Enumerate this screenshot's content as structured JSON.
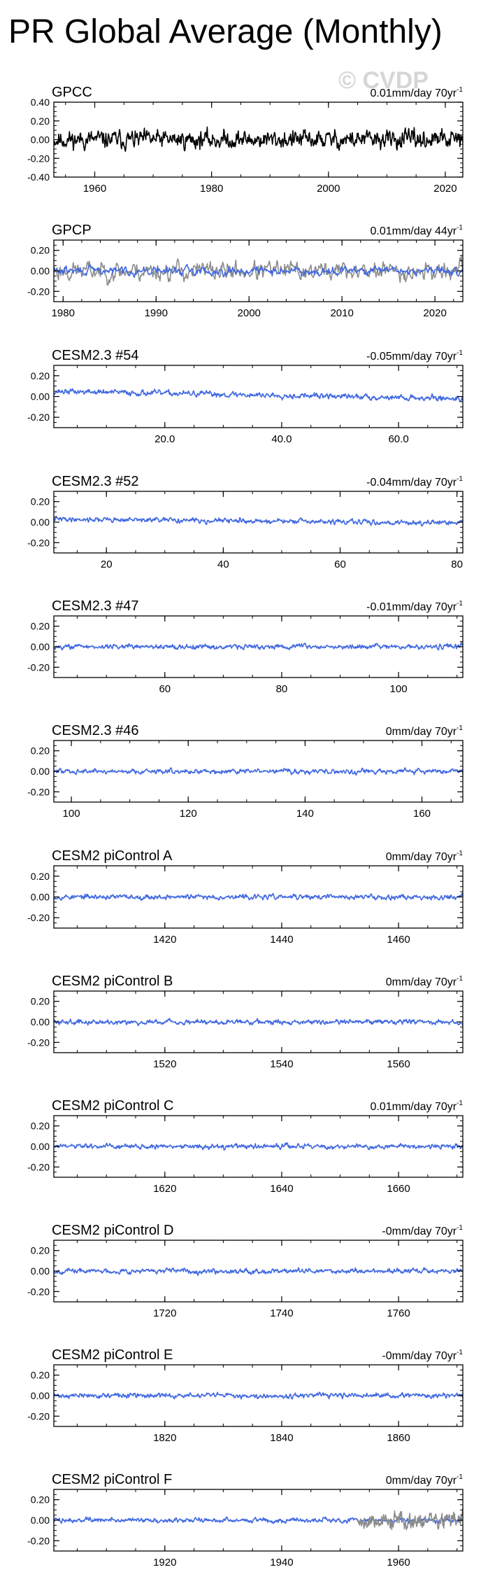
{
  "page": {
    "title": "PR Global Average (Monthly)",
    "watermark": "© CVDP"
  },
  "colors": {
    "observation": "#000000",
    "obs_overlay": "#8c8c8c",
    "model": "#4169e1"
  },
  "chart_data": [
    {
      "type": "line",
      "title": "GPCC",
      "trend": "0.01mm/day 70yr",
      "trend_sup": "-1",
      "xlim": [
        1953,
        2023
      ],
      "ylim": [
        -0.4,
        0.4
      ],
      "xticks": [
        1960,
        1980,
        2000,
        2020
      ],
      "xtick_labels": [
        "1960",
        "1980",
        "2000",
        "2020"
      ],
      "yticks": [
        -0.4,
        -0.2,
        0,
        0.2,
        0.4
      ],
      "ytick_labels": [
        "-0.40",
        "-0.20",
        "0.00",
        "0.20",
        "0.40"
      ],
      "series": [
        {
          "color": "#000000",
          "x_start": 1953,
          "x_end": 2023,
          "amplitude": 0.09,
          "seed": 11
        }
      ]
    },
    {
      "type": "line",
      "title": "GPCP",
      "trend": "0.01mm/day 44yr",
      "trend_sup": "-1",
      "xlim": [
        1979,
        2023
      ],
      "ylim": [
        -0.3,
        0.3
      ],
      "xticks": [
        1980,
        1990,
        2000,
        2010,
        2020
      ],
      "xtick_labels": [
        "1980",
        "1990",
        "2000",
        "2010",
        "2020"
      ],
      "yticks": [
        -0.2,
        0,
        0.2
      ],
      "ytick_labels": [
        "-0.20",
        "0.00",
        "0.20"
      ],
      "series": [
        {
          "color": "#8c8c8c",
          "x_start": 1979,
          "x_end": 2023,
          "amplitude": 0.09,
          "seed": 23
        },
        {
          "color": "#4169e1",
          "x_start": 1979,
          "x_end": 2023,
          "amplitude": 0.04,
          "seed": 29
        }
      ]
    },
    {
      "type": "line",
      "title": "CESM2.3 #54",
      "trend": "-0.05mm/day 70yr",
      "trend_sup": "-1",
      "xlim": [
        1,
        71
      ],
      "ylim": [
        -0.3,
        0.3
      ],
      "xticks": [
        20,
        40,
        60
      ],
      "xtick_labels": [
        "20.0",
        "40.0",
        "60.0"
      ],
      "yticks": [
        -0.2,
        0,
        0.2
      ],
      "ytick_labels": [
        "-0.20",
        "0.00",
        "0.20"
      ],
      "series": [
        {
          "color": "#4169e1",
          "x_start": 1,
          "x_end": 71,
          "amplitude": 0.025,
          "trend_start": 0.05,
          "trend_end": -0.02,
          "seed": 37
        }
      ]
    },
    {
      "type": "line",
      "title": "CESM2.3 #52",
      "trend": "-0.04mm/day 70yr",
      "trend_sup": "-1",
      "xlim": [
        11,
        81
      ],
      "ylim": [
        -0.3,
        0.3
      ],
      "xticks": [
        20,
        40,
        60,
        80
      ],
      "xtick_labels": [
        "20",
        "40",
        "60",
        "80"
      ],
      "yticks": [
        -0.2,
        0,
        0.2
      ],
      "ytick_labels": [
        "-0.20",
        "0.00",
        "0.20"
      ],
      "series": [
        {
          "color": "#4169e1",
          "x_start": 11,
          "x_end": 81,
          "amplitude": 0.022,
          "trend_start": 0.03,
          "trend_end": -0.01,
          "seed": 41
        }
      ]
    },
    {
      "type": "line",
      "title": "CESM2.3 #47",
      "trend": "-0.01mm/day 70yr",
      "trend_sup": "-1",
      "xlim": [
        41,
        111
      ],
      "ylim": [
        -0.3,
        0.3
      ],
      "xticks": [
        60,
        80,
        100
      ],
      "xtick_labels": [
        "60",
        "80",
        "100"
      ],
      "yticks": [
        -0.2,
        0,
        0.2
      ],
      "ytick_labels": [
        "-0.20",
        "0.00",
        "0.20"
      ],
      "series": [
        {
          "color": "#4169e1",
          "x_start": 41,
          "x_end": 111,
          "amplitude": 0.022,
          "seed": 43
        }
      ]
    },
    {
      "type": "line",
      "title": "CESM2.3 #46",
      "trend": "0mm/day 70yr",
      "trend_sup": "-1",
      "xlim": [
        97,
        167
      ],
      "ylim": [
        -0.3,
        0.3
      ],
      "xticks": [
        100,
        120,
        140,
        160
      ],
      "xtick_labels": [
        "100",
        "120",
        "140",
        "160"
      ],
      "yticks": [
        -0.2,
        0,
        0.2
      ],
      "ytick_labels": [
        "-0.20",
        "0.00",
        "0.20"
      ],
      "series": [
        {
          "color": "#4169e1",
          "x_start": 97,
          "x_end": 167,
          "amplitude": 0.022,
          "seed": 47
        }
      ]
    },
    {
      "type": "line",
      "title": "CESM2 piControl A",
      "trend": "0mm/day 70yr",
      "trend_sup": "-1",
      "xlim": [
        1401,
        1471
      ],
      "ylim": [
        -0.3,
        0.3
      ],
      "xticks": [
        1420,
        1440,
        1460
      ],
      "xtick_labels": [
        "1420",
        "1440",
        "1460"
      ],
      "yticks": [
        -0.2,
        0,
        0.2
      ],
      "ytick_labels": [
        "-0.20",
        "0.00",
        "0.20"
      ],
      "series": [
        {
          "color": "#4169e1",
          "x_start": 1401,
          "x_end": 1471,
          "amplitude": 0.022,
          "seed": 53
        }
      ]
    },
    {
      "type": "line",
      "title": "CESM2 piControl B",
      "trend": "0mm/day 70yr",
      "trend_sup": "-1",
      "xlim": [
        1501,
        1571
      ],
      "ylim": [
        -0.3,
        0.3
      ],
      "xticks": [
        1520,
        1540,
        1560
      ],
      "xtick_labels": [
        "1520",
        "1540",
        "1560"
      ],
      "yticks": [
        -0.2,
        0,
        0.2
      ],
      "ytick_labels": [
        "-0.20",
        "0.00",
        "0.20"
      ],
      "series": [
        {
          "color": "#4169e1",
          "x_start": 1501,
          "x_end": 1571,
          "amplitude": 0.022,
          "seed": 59
        }
      ]
    },
    {
      "type": "line",
      "title": "CESM2 piControl C",
      "trend": "0.01mm/day 70yr",
      "trend_sup": "-1",
      "xlim": [
        1601,
        1671
      ],
      "ylim": [
        -0.3,
        0.3
      ],
      "xticks": [
        1620,
        1640,
        1660
      ],
      "xtick_labels": [
        "1620",
        "1640",
        "1660"
      ],
      "yticks": [
        -0.2,
        0,
        0.2
      ],
      "ytick_labels": [
        "-0.20",
        "0.00",
        "0.20"
      ],
      "series": [
        {
          "color": "#4169e1",
          "x_start": 1601,
          "x_end": 1671,
          "amplitude": 0.022,
          "seed": 61
        }
      ]
    },
    {
      "type": "line",
      "title": "CESM2 piControl D",
      "trend": "-0mm/day 70yr",
      "trend_sup": "-1",
      "xlim": [
        1701,
        1771
      ],
      "ylim": [
        -0.3,
        0.3
      ],
      "xticks": [
        1720,
        1740,
        1760
      ],
      "xtick_labels": [
        "1720",
        "1740",
        "1760"
      ],
      "yticks": [
        -0.2,
        0,
        0.2
      ],
      "ytick_labels": [
        "-0.20",
        "0.00",
        "0.20"
      ],
      "series": [
        {
          "color": "#4169e1",
          "x_start": 1701,
          "x_end": 1771,
          "amplitude": 0.022,
          "seed": 67
        }
      ]
    },
    {
      "type": "line",
      "title": "CESM2 piControl E",
      "trend": "-0mm/day 70yr",
      "trend_sup": "-1",
      "xlim": [
        1801,
        1871
      ],
      "ylim": [
        -0.3,
        0.3
      ],
      "xticks": [
        1820,
        1840,
        1860
      ],
      "xtick_labels": [
        "1820",
        "1840",
        "1860"
      ],
      "yticks": [
        -0.2,
        0,
        0.2
      ],
      "ytick_labels": [
        "-0.20",
        "0.00",
        "0.20"
      ],
      "series": [
        {
          "color": "#4169e1",
          "x_start": 1801,
          "x_end": 1871,
          "amplitude": 0.022,
          "seed": 71
        }
      ]
    },
    {
      "type": "line",
      "title": "CESM2 piControl F",
      "trend": "0mm/day 70yr",
      "trend_sup": "-1",
      "xlim": [
        1901,
        1971
      ],
      "ylim": [
        -0.3,
        0.3
      ],
      "xticks": [
        1920,
        1940,
        1960
      ],
      "xtick_labels": [
        "1920",
        "1940",
        "1960"
      ],
      "yticks": [
        -0.2,
        0,
        0.2
      ],
      "ytick_labels": [
        "-0.20",
        "0.00",
        "0.20"
      ],
      "series": [
        {
          "color": "#4169e1",
          "x_start": 1901,
          "x_end": 1971,
          "amplitude": 0.022,
          "seed": 73
        },
        {
          "color": "#8c8c8c",
          "x_start": 1953,
          "x_end": 1971,
          "amplitude": 0.08,
          "seed": 79
        }
      ]
    }
  ]
}
